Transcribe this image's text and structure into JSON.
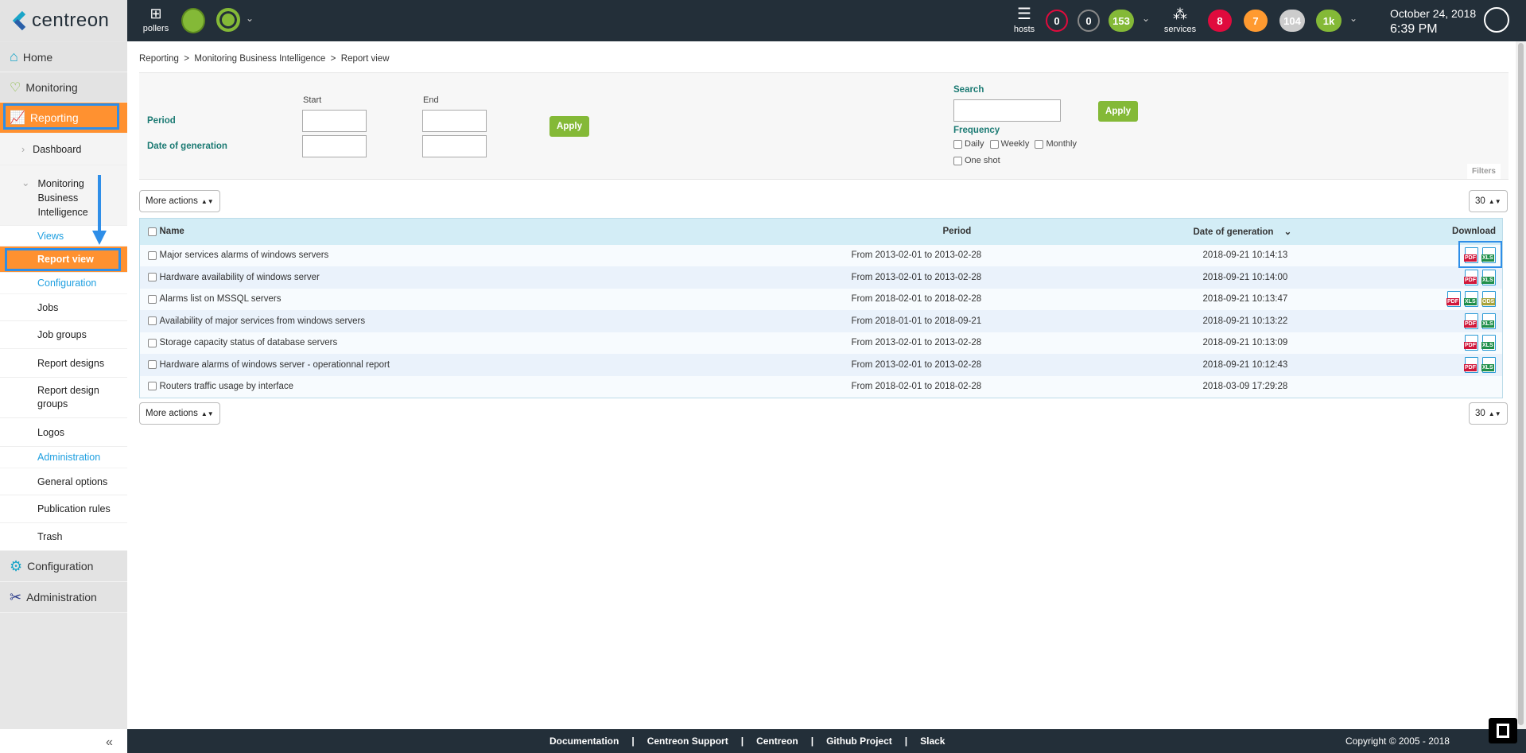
{
  "header": {
    "logo": "centreon",
    "pollers_label": "pollers",
    "hosts_label": "hosts",
    "services_label": "services",
    "host_counts": [
      {
        "value": "0",
        "color": "#e00b3d",
        "style": "outline"
      },
      {
        "value": "0",
        "color": "#888888",
        "style": "outline"
      },
      {
        "value": "153",
        "color": "#84b937",
        "style": "fill"
      }
    ],
    "service_counts": [
      {
        "value": "8",
        "color": "#e00b3d"
      },
      {
        "value": "7",
        "color": "#ff9a30"
      },
      {
        "value": "104",
        "color": "#cccccc"
      },
      {
        "value": "1k",
        "color": "#84b937"
      }
    ],
    "date": "October 24, 2018",
    "time": "6:39 PM"
  },
  "sidebar": {
    "items": [
      {
        "label": "Home"
      },
      {
        "label": "Monitoring"
      },
      {
        "label": "Reporting"
      },
      {
        "label": "Dashboard"
      },
      {
        "label": "Monitoring Business Intelligence"
      },
      {
        "label": "Views"
      },
      {
        "label": "Report view"
      },
      {
        "label": "Configuration"
      },
      {
        "label": "Jobs"
      },
      {
        "label": "Job groups"
      },
      {
        "label": "Report designs"
      },
      {
        "label": "Report design groups"
      },
      {
        "label": "Logos"
      },
      {
        "label": "Administration"
      },
      {
        "label": "General options"
      },
      {
        "label": "Publication rules"
      },
      {
        "label": "Trash"
      },
      {
        "label": "Configuration"
      },
      {
        "label": "Administration"
      }
    ],
    "collapse": "«"
  },
  "breadcrumb": "Reporting  >  Monitoring Business Intelligence  >  Report view",
  "filters": {
    "start": "Start",
    "end": "End",
    "period": "Period",
    "date_of_generation": "Date of generation",
    "apply": "Apply",
    "search": "Search",
    "search_value": "",
    "frequency": "Frequency",
    "daily": "Daily",
    "weekly": "Weekly",
    "monthly": "Monthly",
    "one_shot": "One shot",
    "filters_tab": "Filters"
  },
  "toolbar": {
    "more_actions": "More actions",
    "per_page": "30"
  },
  "table": {
    "headers": {
      "name": "Name",
      "period": "Period",
      "date": "Date of generation",
      "download": "Download"
    },
    "rows": [
      {
        "name": "Major services alarms of windows servers",
        "period": "From 2013-02-01 to 2013-02-28",
        "date": "2018-09-21 10:14:13",
        "files": [
          "PDF",
          "XLS"
        ]
      },
      {
        "name": "Hardware availability of windows server",
        "period": "From 2013-02-01 to 2013-02-28",
        "date": "2018-09-21 10:14:00",
        "files": [
          "PDF",
          "XLS"
        ]
      },
      {
        "name": "Alarms list on MSSQL servers",
        "period": "From 2018-02-01 to 2018-02-28",
        "date": "2018-09-21 10:13:47",
        "files": [
          "PDF",
          "XLS",
          "ODS"
        ]
      },
      {
        "name": "Availability of major services from windows servers",
        "period": "From 2018-01-01 to 2018-09-21",
        "date": "2018-09-21 10:13:22",
        "files": [
          "PDF",
          "XLS"
        ]
      },
      {
        "name": "Storage capacity status of database servers",
        "period": "From 2013-02-01 to 2013-02-28",
        "date": "2018-09-21 10:13:09",
        "files": [
          "PDF",
          "XLS"
        ]
      },
      {
        "name": "Hardware alarms of windows server - operationnal report",
        "period": "From 2013-02-01 to 2013-02-28",
        "date": "2018-09-21 10:12:43",
        "files": [
          "PDF",
          "XLS"
        ]
      },
      {
        "name": "Routers traffic usage by interface",
        "period": "From 2018-02-01 to 2018-02-28",
        "date": "2018-03-09 17:29:28",
        "files": []
      }
    ]
  },
  "file_colors": {
    "PDF": "#d0173a",
    "XLS": "#1f8f4a",
    "ODS": "#a9a43a"
  },
  "footer": {
    "links": [
      "Documentation",
      "Centreon Support",
      "Centreon",
      "Github Project",
      "Slack"
    ],
    "copyright": "Copyright © 2005 - 2018"
  }
}
